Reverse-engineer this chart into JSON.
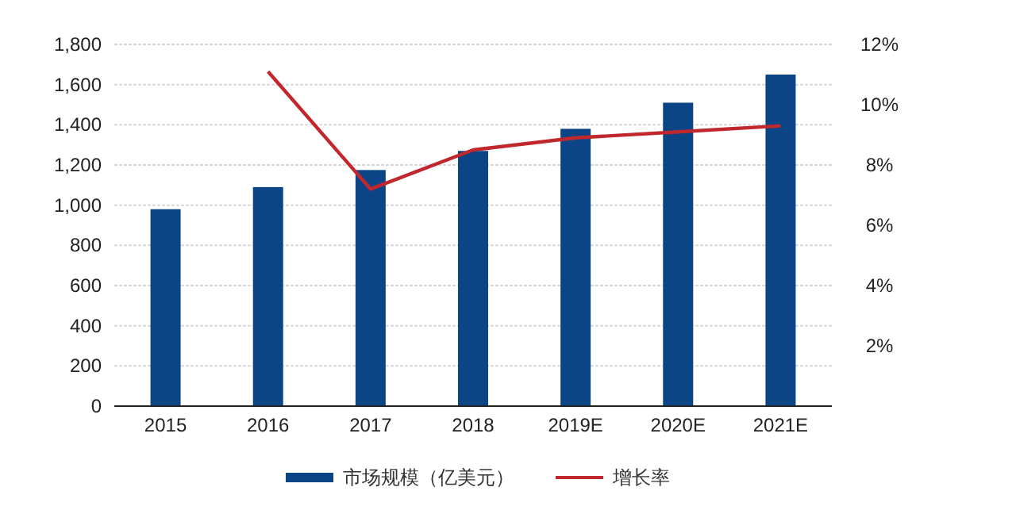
{
  "chart_data": {
    "type": "bar",
    "categories": [
      "2015",
      "2016",
      "2017",
      "2018",
      "2019E",
      "2020E",
      "2021E"
    ],
    "series": [
      {
        "name": "市场规模（亿美元）",
        "color": "#0b4586",
        "values": [
          980,
          1090,
          1175,
          1270,
          1380,
          1510,
          1650
        ]
      },
      {
        "name": "增长率",
        "type": "line",
        "axis": "y2",
        "color": "#c0282d",
        "values": [
          null,
          11.1,
          7.2,
          8.5,
          8.9,
          9.1,
          9.3
        ]
      }
    ],
    "ylim": [
      0,
      1800
    ],
    "yticks": [
      {
        "value": 0,
        "label": "0"
      },
      {
        "value": 200,
        "label": "200"
      },
      {
        "value": 400,
        "label": "400"
      },
      {
        "value": 600,
        "label": "600"
      },
      {
        "value": 800,
        "label": "800"
      },
      {
        "value": 1000,
        "label": "1,000"
      },
      {
        "value": 1200,
        "label": "1,200"
      },
      {
        "value": 1400,
        "label": "1,400"
      },
      {
        "value": 1600,
        "label": "1,600"
      },
      {
        "value": 1800,
        "label": "1,800"
      }
    ],
    "y2lim": [
      0,
      12
    ],
    "y2ticks": [
      {
        "value": 2,
        "label": "2%"
      },
      {
        "value": 4,
        "label": "4%"
      },
      {
        "value": 6,
        "label": "6%"
      },
      {
        "value": 8,
        "label": "8%"
      },
      {
        "value": 10,
        "label": "10%"
      },
      {
        "value": 12,
        "label": "12%"
      }
    ],
    "grid": "y",
    "legend": "bottom"
  }
}
